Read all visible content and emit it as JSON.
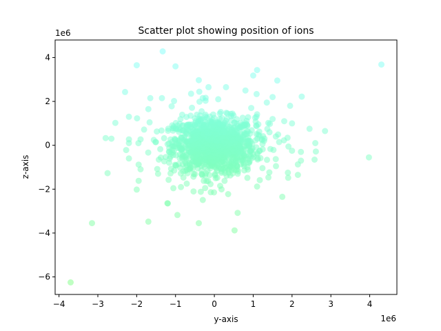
{
  "chart_data": {
    "type": "scatter",
    "title": "Scatter plot showing position of ions",
    "xlabel": "y-axis",
    "ylabel": "z-axis",
    "x_offset_label": "1e6",
    "y_offset_label": "1e6",
    "xlim": [
      -4100000,
      4700000
    ],
    "ylim": [
      -6800000,
      4800000
    ],
    "xticks": [
      -4000000,
      -3000000,
      -2000000,
      -1000000,
      0,
      1000000,
      2000000,
      3000000,
      4000000
    ],
    "xtick_labels": [
      "−4",
      "−3",
      "−2",
      "−1",
      "0",
      "1",
      "2",
      "3",
      "4"
    ],
    "yticks": [
      -6000000,
      -4000000,
      -2000000,
      0,
      2000000,
      4000000
    ],
    "ytick_labels": [
      "−6",
      "−4",
      "−2",
      "0",
      "2",
      "4"
    ],
    "grid": false,
    "legend": "none",
    "marker_alpha": 0.5,
    "color_low": "#80ff80",
    "color_high": "#80ffff",
    "points": [
      [
        -3700000,
        -6250000
      ],
      [
        -3150000,
        -3550000
      ],
      [
        -1700000,
        -3480000
      ],
      [
        -950000,
        -3180000
      ],
      [
        -400000,
        -3550000
      ],
      [
        520000,
        -3880000
      ],
      [
        600000,
        -3080000
      ],
      [
        -1200000,
        -2650000
      ],
      [
        -2000000,
        -2020000
      ],
      [
        -2750000,
        -1270000
      ],
      [
        -1950000,
        -1620000
      ],
      [
        -1450000,
        -1300000
      ],
      [
        -350000,
        -2120000
      ],
      [
        150000,
        -1850000
      ],
      [
        1100000,
        -1880000
      ],
      [
        1750000,
        -2350000
      ],
      [
        1900000,
        -1480000
      ],
      [
        2150000,
        -1350000
      ],
      [
        3980000,
        -550000
      ],
      [
        4300000,
        3680000
      ],
      [
        -1330000,
        4280000
      ],
      [
        -2000000,
        3650000
      ],
      [
        -1000000,
        3600000
      ],
      [
        -400000,
        2970000
      ],
      [
        1000000,
        3180000
      ],
      [
        1100000,
        3430000
      ],
      [
        1620000,
        2950000
      ],
      [
        2250000,
        2220000
      ],
      [
        -2300000,
        2430000
      ],
      [
        -1650000,
        2150000
      ],
      [
        -1350000,
        2150000
      ],
      [
        -1100000,
        1780000
      ],
      [
        -2200000,
        1300000
      ],
      [
        -1700000,
        1650000
      ],
      [
        -2550000,
        1020000
      ],
      [
        -1990000,
        1230000
      ],
      [
        -2800000,
        330000
      ],
      [
        -2650000,
        300000
      ],
      [
        -2200000,
        270000
      ],
      [
        -2200000,
        100000
      ],
      [
        -1900000,
        270000
      ],
      [
        -2200000,
        -600000
      ],
      [
        -1950000,
        -880000
      ],
      [
        2850000,
        650000
      ],
      [
        2450000,
        750000
      ],
      [
        2600000,
        100000
      ],
      [
        2000000,
        1000000
      ],
      [
        1950000,
        1800000
      ],
      [
        1800000,
        1100000
      ],
      [
        2230000,
        -700000
      ],
      [
        2150000,
        -870000
      ],
      [
        2000000,
        -250000
      ],
      [
        -150000,
        2650000
      ],
      [
        300000,
        2650000
      ],
      [
        800000,
        2500000
      ],
      [
        -600000,
        2350000
      ],
      [
        1500000,
        2200000
      ],
      [
        1350000,
        1950000
      ],
      [
        950000,
        1700000
      ],
      [
        -300000,
        2150000
      ],
      [
        100000,
        2100000
      ]
    ]
  }
}
